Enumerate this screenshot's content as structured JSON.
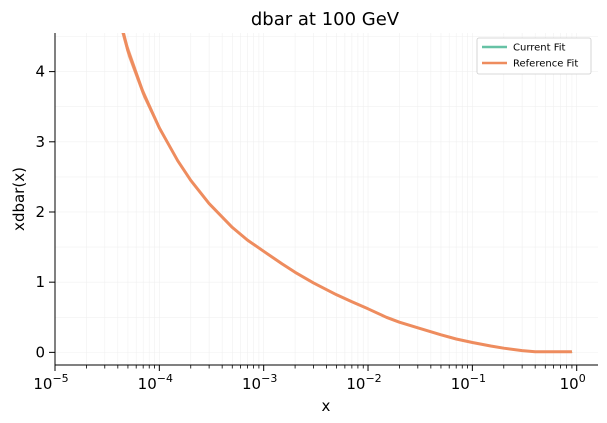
{
  "chart_data": {
    "type": "line",
    "title": "dbar at 100 GeV",
    "xlabel": "x",
    "ylabel": "xdbar(x)",
    "xscale": "log",
    "xlim": [
      1e-05,
      1.6
    ],
    "ylim": [
      -0.18,
      4.55
    ],
    "grid": false,
    "legend_position": "top-right",
    "x_ticks": [
      {
        "value": 1e-05,
        "base": "10",
        "exp": "−5"
      },
      {
        "value": 0.0001,
        "base": "10",
        "exp": "−4"
      },
      {
        "value": 0.001,
        "base": "10",
        "exp": "−3"
      },
      {
        "value": 0.01,
        "base": "10",
        "exp": "−2"
      },
      {
        "value": 0.1,
        "base": "10",
        "exp": "−1"
      },
      {
        "value": 1,
        "base": "10",
        "exp": "0"
      }
    ],
    "y_ticks": [
      {
        "value": 0,
        "label": "0"
      },
      {
        "value": 1,
        "label": "1"
      },
      {
        "value": 2,
        "label": "2"
      },
      {
        "value": 3,
        "label": "3"
      },
      {
        "value": 4,
        "label": "4"
      }
    ],
    "x": [
      4e-05,
      5e-05,
      7e-05,
      0.0001,
      0.00015,
      0.0002,
      0.0003,
      0.0005,
      0.0007,
      0.001,
      0.0015,
      0.002,
      0.003,
      0.005,
      0.007,
      0.01,
      0.015,
      0.02,
      0.03,
      0.05,
      0.07,
      0.1,
      0.15,
      0.2,
      0.3,
      0.4,
      0.5,
      0.7,
      0.9
    ],
    "series": [
      {
        "name": "Current Fit",
        "color": "#66c2a5",
        "band_color": "#c8c29a",
        "values": [
          4.85,
          4.3,
          3.7,
          3.2,
          2.73,
          2.45,
          2.12,
          1.78,
          1.6,
          1.44,
          1.26,
          1.14,
          0.99,
          0.82,
          0.72,
          0.62,
          0.5,
          0.43,
          0.35,
          0.25,
          0.19,
          0.14,
          0.09,
          0.06,
          0.025,
          0.01,
          0.01,
          0.01,
          0.01
        ]
      },
      {
        "name": "Reference Fit",
        "color": "#ee8c5e",
        "band_color": "#f0a17a",
        "values": [
          4.85,
          4.3,
          3.7,
          3.2,
          2.73,
          2.45,
          2.12,
          1.78,
          1.6,
          1.44,
          1.26,
          1.14,
          0.99,
          0.82,
          0.72,
          0.62,
          0.5,
          0.43,
          0.35,
          0.25,
          0.19,
          0.14,
          0.09,
          0.06,
          0.025,
          0.01,
          0.01,
          0.01,
          0.01
        ]
      }
    ],
    "colors": {
      "axis": "#000000",
      "minor_grid": "#f0f0f0"
    }
  }
}
